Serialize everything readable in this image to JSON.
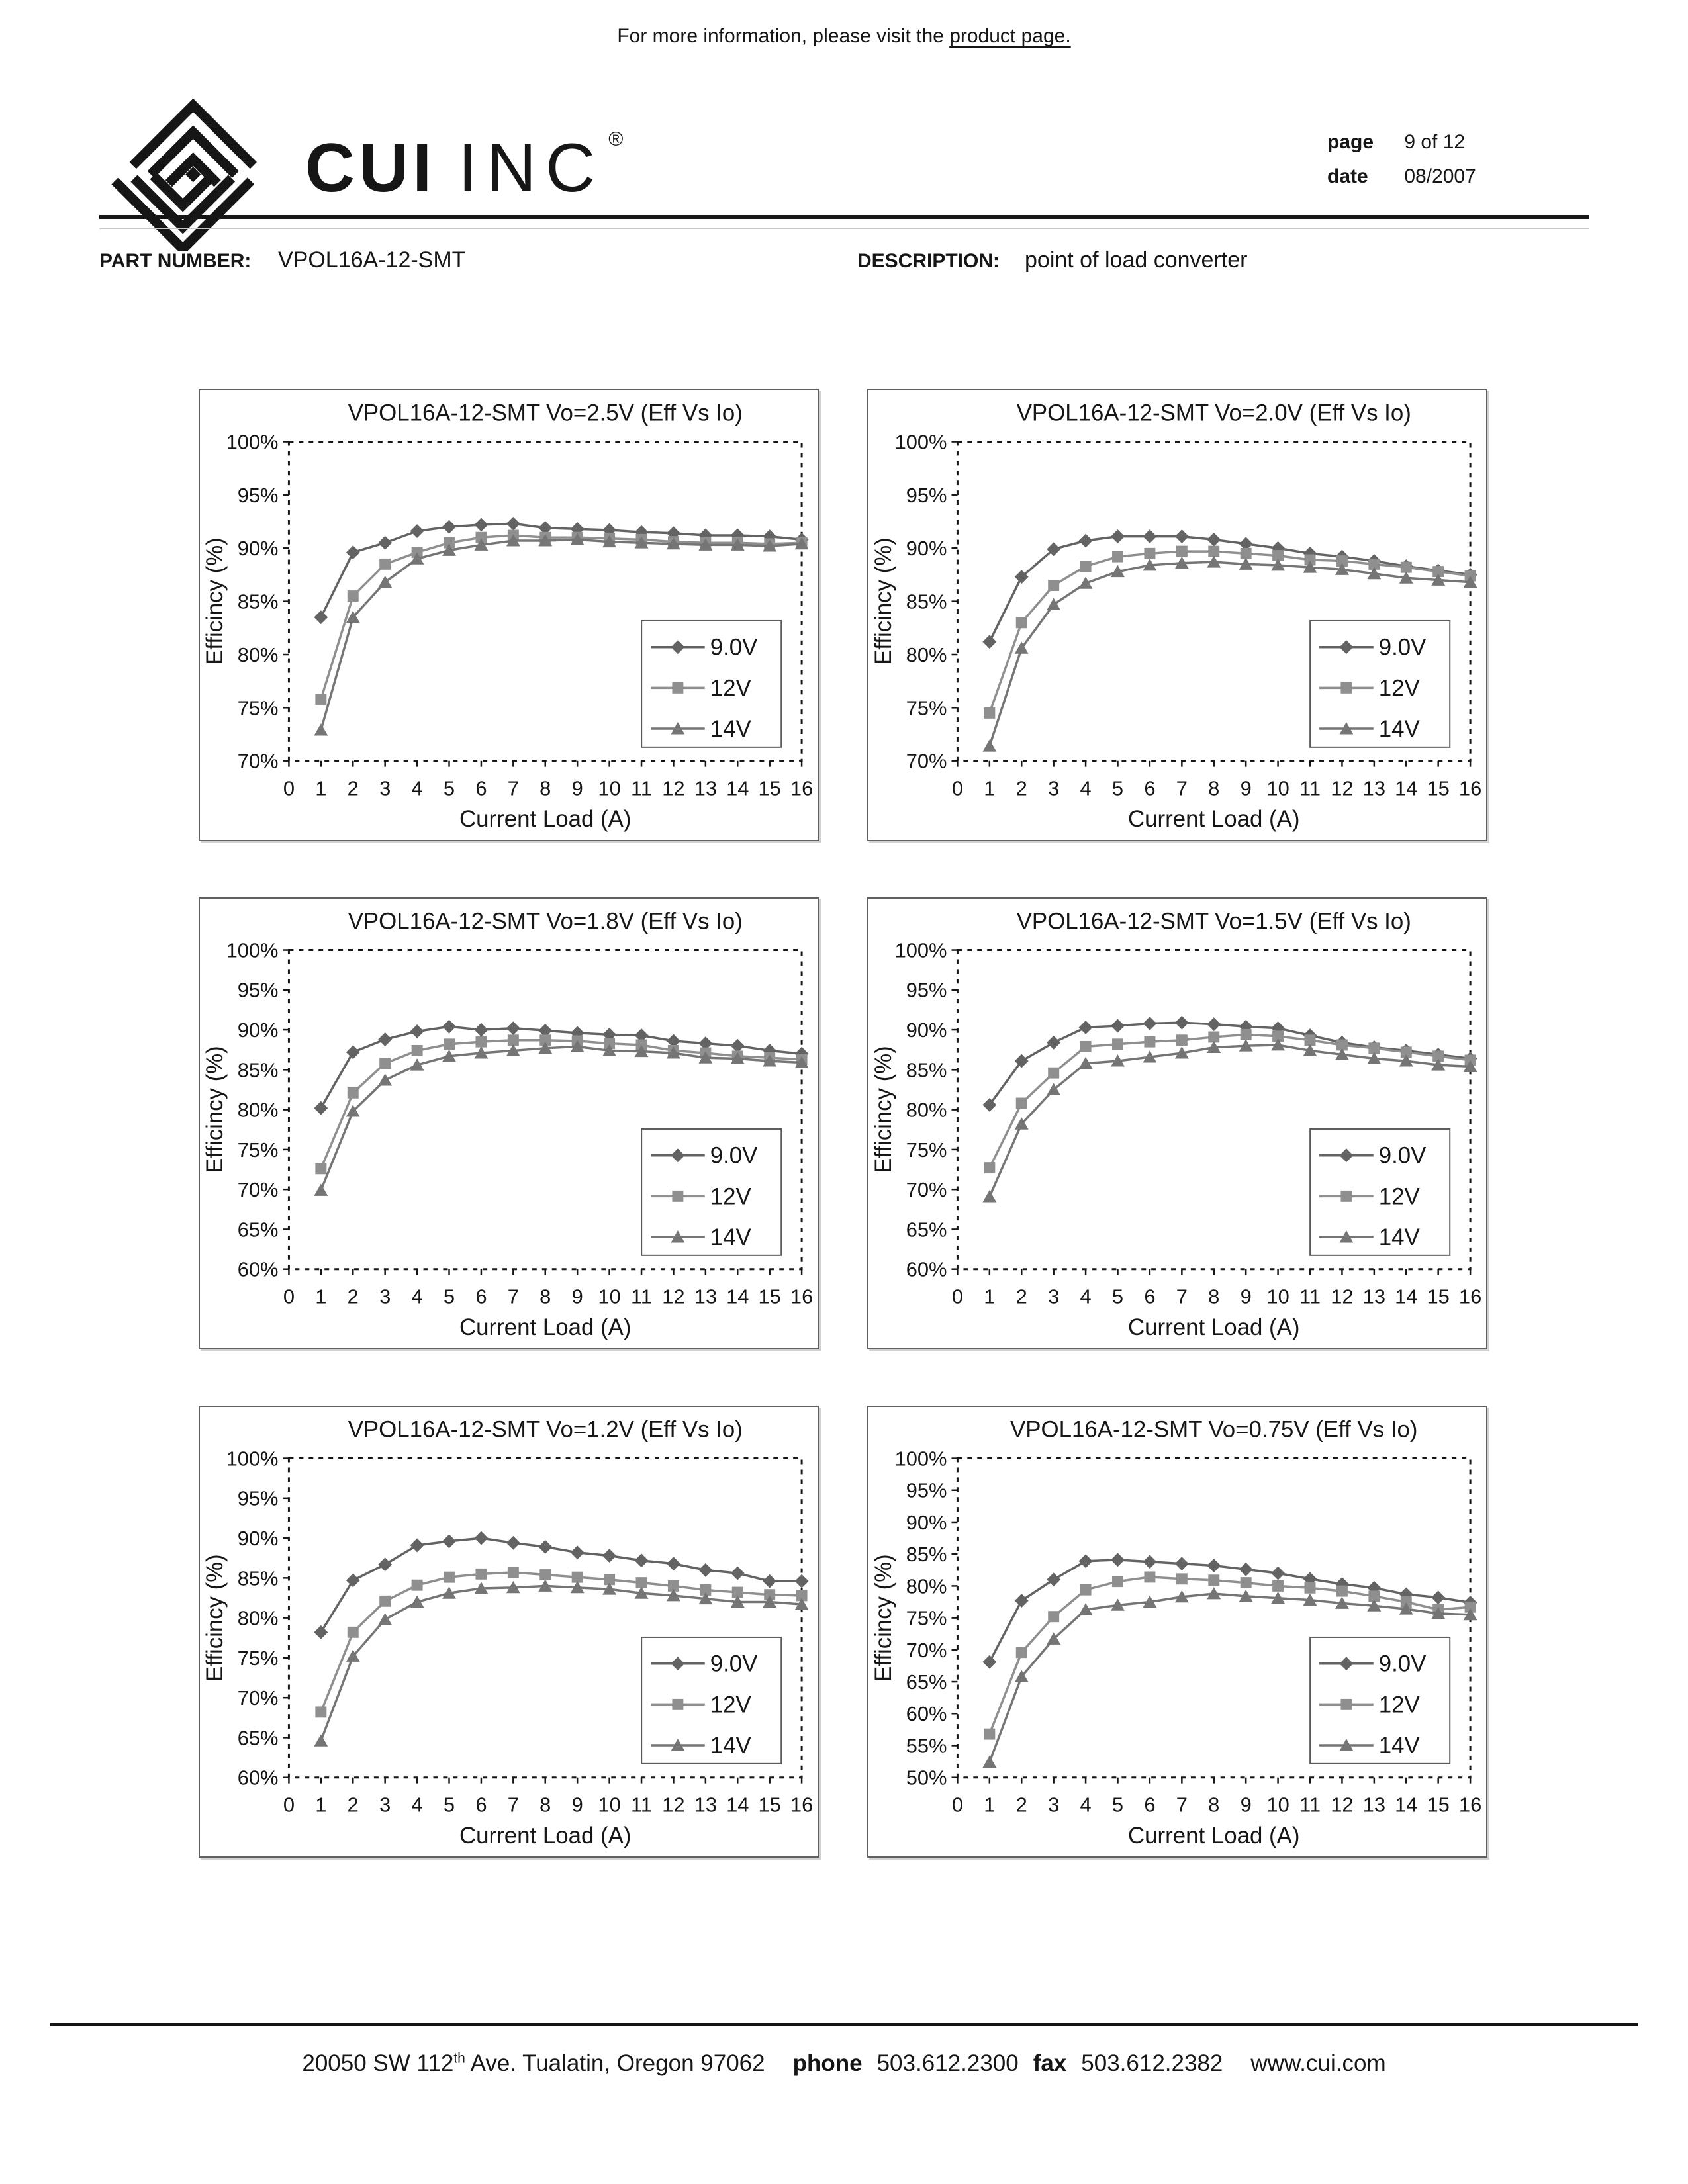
{
  "top_note": {
    "text": "For more information, please visit the ",
    "link": "product page."
  },
  "brand": {
    "cui": "CUI",
    "inc": "INC",
    "reg": "®"
  },
  "meta": {
    "page_label": "page",
    "page_value": "9 of 12",
    "date_label": "date",
    "date_value": "08/2007"
  },
  "part": {
    "label": "PART NUMBER:",
    "value": "VPOL16A-12-SMT"
  },
  "description": {
    "label": "DESCRIPTION:",
    "value": "point of load converter"
  },
  "footer": {
    "address_pre": "20050 SW 112",
    "address_sup": "th",
    "address_post": " Ave. Tualatin, Oregon 97062",
    "phone_label": "phone",
    "phone_value": "503.612.2300",
    "fax_label": "fax",
    "fax_value": "503.612.2382",
    "website": "www.cui.com"
  },
  "chart_style": {
    "series_colors": {
      "9.0V": "#636363",
      "12V": "#8f8f8f",
      "14V": "#757575"
    },
    "border_color": "#161616",
    "legend_border_color": "#5a5a5a"
  },
  "chart_data": [
    {
      "type": "line",
      "title": "VPOL16A-12-SMT Vo=2.5V (Eff Vs Io)",
      "xlabel": "Current Load (A)",
      "ylabel": "Efficincy (%)",
      "xlim": [
        0,
        16
      ],
      "ylim": [
        70,
        100
      ],
      "ytick_step": 5,
      "grid": false,
      "legend_position": "inside-lower-right",
      "x": [
        1,
        2,
        3,
        4,
        5,
        6,
        7,
        8,
        9,
        10,
        11,
        12,
        13,
        14,
        15,
        16
      ],
      "series": [
        {
          "name": "9.0V",
          "marker": "diamond",
          "color": "#636363",
          "values": [
            83.5,
            89.6,
            90.5,
            91.6,
            92.0,
            92.2,
            92.3,
            91.9,
            91.8,
            91.7,
            91.5,
            91.4,
            91.2,
            91.2,
            91.1,
            90.8
          ]
        },
        {
          "name": "12V",
          "marker": "square",
          "color": "#8f8f8f",
          "values": [
            75.8,
            85.5,
            88.5,
            89.6,
            90.5,
            91.0,
            91.2,
            91.0,
            91.0,
            90.9,
            90.8,
            90.6,
            90.5,
            90.5,
            90.4,
            90.5
          ]
        },
        {
          "name": "14V",
          "marker": "triangle",
          "color": "#757575",
          "values": [
            72.9,
            83.5,
            86.8,
            89.0,
            89.8,
            90.3,
            90.7,
            90.7,
            90.8,
            90.6,
            90.5,
            90.4,
            90.3,
            90.3,
            90.2,
            90.4
          ]
        }
      ]
    },
    {
      "type": "line",
      "title": "VPOL16A-12-SMT Vo=2.0V (Eff Vs Io)",
      "xlabel": "Current Load (A)",
      "ylabel": "Efficincy (%)",
      "xlim": [
        0,
        16
      ],
      "ylim": [
        70,
        100
      ],
      "ytick_step": 5,
      "grid": false,
      "legend_position": "inside-lower-right",
      "x": [
        1,
        2,
        3,
        4,
        5,
        6,
        7,
        8,
        9,
        10,
        11,
        12,
        13,
        14,
        15,
        16
      ],
      "series": [
        {
          "name": "9.0V",
          "marker": "diamond",
          "color": "#636363",
          "values": [
            81.2,
            87.3,
            89.9,
            90.7,
            91.1,
            91.1,
            91.1,
            90.8,
            90.4,
            90.0,
            89.5,
            89.2,
            88.8,
            88.3,
            87.9,
            87.5
          ]
        },
        {
          "name": "12V",
          "marker": "square",
          "color": "#8f8f8f",
          "values": [
            74.5,
            83.0,
            86.5,
            88.3,
            89.2,
            89.5,
            89.7,
            89.7,
            89.5,
            89.3,
            88.9,
            88.8,
            88.5,
            88.2,
            87.8,
            87.4
          ]
        },
        {
          "name": "14V",
          "marker": "triangle",
          "color": "#757575",
          "values": [
            71.4,
            80.6,
            84.7,
            86.7,
            87.8,
            88.4,
            88.6,
            88.7,
            88.5,
            88.4,
            88.2,
            88.0,
            87.6,
            87.2,
            87.0,
            86.8
          ]
        }
      ]
    },
    {
      "type": "line",
      "title": "VPOL16A-12-SMT Vo=1.8V (Eff Vs Io)",
      "xlabel": "Current Load (A)",
      "ylabel": "Efficincy (%)",
      "xlim": [
        0,
        16
      ],
      "ylim": [
        60,
        100
      ],
      "ytick_step": 5,
      "grid": false,
      "legend_position": "inside-lower-right",
      "x": [
        1,
        2,
        3,
        4,
        5,
        6,
        7,
        8,
        9,
        10,
        11,
        12,
        13,
        14,
        15,
        16
      ],
      "series": [
        {
          "name": "9.0V",
          "marker": "diamond",
          "color": "#636363",
          "values": [
            80.2,
            87.2,
            88.8,
            89.8,
            90.4,
            90.0,
            90.2,
            89.9,
            89.6,
            89.4,
            89.3,
            88.6,
            88.3,
            88.0,
            87.4,
            87.0
          ]
        },
        {
          "name": "12V",
          "marker": "square",
          "color": "#8f8f8f",
          "values": [
            72.6,
            82.1,
            85.8,
            87.4,
            88.2,
            88.5,
            88.7,
            88.7,
            88.6,
            88.3,
            88.1,
            87.4,
            87.1,
            86.7,
            86.5,
            86.3
          ]
        },
        {
          "name": "14V",
          "marker": "triangle",
          "color": "#757575",
          "values": [
            69.9,
            79.8,
            83.7,
            85.6,
            86.7,
            87.1,
            87.4,
            87.7,
            87.9,
            87.4,
            87.3,
            87.1,
            86.5,
            86.4,
            86.1,
            85.9
          ]
        }
      ]
    },
    {
      "type": "line",
      "title": "VPOL16A-12-SMT Vo=1.5V (Eff Vs Io)",
      "xlabel": "Current Load (A)",
      "ylabel": "Efficincy (%)",
      "xlim": [
        0,
        16
      ],
      "ylim": [
        60,
        100
      ],
      "ytick_step": 5,
      "grid": false,
      "legend_position": "inside-lower-right",
      "x": [
        1,
        2,
        3,
        4,
        5,
        6,
        7,
        8,
        9,
        10,
        11,
        12,
        13,
        14,
        15,
        16
      ],
      "series": [
        {
          "name": "9.0V",
          "marker": "diamond",
          "color": "#636363",
          "values": [
            80.6,
            86.1,
            88.4,
            90.3,
            90.5,
            90.8,
            90.9,
            90.7,
            90.4,
            90.2,
            89.3,
            88.4,
            87.8,
            87.4,
            86.9,
            86.4
          ]
        },
        {
          "name": "12V",
          "marker": "square",
          "color": "#8f8f8f",
          "values": [
            72.7,
            80.8,
            84.6,
            87.9,
            88.2,
            88.5,
            88.7,
            89.1,
            89.4,
            89.2,
            88.7,
            88.1,
            87.7,
            87.2,
            86.7,
            86.2
          ]
        },
        {
          "name": "14V",
          "marker": "triangle",
          "color": "#757575",
          "values": [
            69.1,
            78.2,
            82.5,
            85.8,
            86.1,
            86.6,
            87.1,
            87.8,
            88.0,
            88.1,
            87.4,
            86.9,
            86.4,
            86.1,
            85.6,
            85.4
          ]
        }
      ]
    },
    {
      "type": "line",
      "title": "VPOL16A-12-SMT Vo=1.2V (Eff Vs Io)",
      "xlabel": "Current Load (A)",
      "ylabel": "Efficincy (%)",
      "xlim": [
        0,
        16
      ],
      "ylim": [
        60,
        100
      ],
      "ytick_step": 5,
      "grid": false,
      "legend_position": "inside-lower-right",
      "x": [
        1,
        2,
        3,
        4,
        5,
        6,
        7,
        8,
        9,
        10,
        11,
        12,
        13,
        14,
        15,
        16
      ],
      "series": [
        {
          "name": "9.0V",
          "marker": "diamond",
          "color": "#636363",
          "values": [
            78.2,
            84.7,
            86.7,
            89.1,
            89.6,
            90.0,
            89.4,
            88.9,
            88.2,
            87.8,
            87.2,
            86.8,
            86.0,
            85.6,
            84.6,
            84.6
          ]
        },
        {
          "name": "12V",
          "marker": "square",
          "color": "#8f8f8f",
          "values": [
            68.2,
            78.2,
            82.1,
            84.1,
            85.1,
            85.5,
            85.7,
            85.4,
            85.1,
            84.8,
            84.4,
            84.0,
            83.5,
            83.2,
            82.9,
            82.8
          ]
        },
        {
          "name": "14V",
          "marker": "triangle",
          "color": "#757575",
          "values": [
            64.6,
            75.2,
            79.8,
            82.0,
            83.1,
            83.7,
            83.8,
            84.0,
            83.8,
            83.6,
            83.1,
            82.8,
            82.4,
            82.0,
            82.0,
            81.7
          ]
        }
      ]
    },
    {
      "type": "line",
      "title": "VPOL16A-12-SMT Vo=0.75V (Eff Vs Io)",
      "xlabel": "Current Load (A)",
      "ylabel": "Efficincy (%)",
      "xlim": [
        0,
        16
      ],
      "ylim": [
        50,
        100
      ],
      "ytick_step": 5,
      "grid": false,
      "legend_position": "inside-lower-right",
      "x": [
        1,
        2,
        3,
        4,
        5,
        6,
        7,
        8,
        9,
        10,
        11,
        12,
        13,
        14,
        15,
        16
      ],
      "series": [
        {
          "name": "9.0V",
          "marker": "diamond",
          "color": "#636363",
          "values": [
            68.1,
            77.7,
            81.0,
            83.9,
            84.1,
            83.8,
            83.5,
            83.2,
            82.6,
            82.0,
            81.1,
            80.3,
            79.7,
            78.7,
            78.2,
            77.4
          ]
        },
        {
          "name": "12V",
          "marker": "square",
          "color": "#8f8f8f",
          "values": [
            56.8,
            69.6,
            75.2,
            79.4,
            80.7,
            81.4,
            81.1,
            80.9,
            80.5,
            80.0,
            79.7,
            79.2,
            78.4,
            77.5,
            76.3,
            76.7
          ]
        },
        {
          "name": "14V",
          "marker": "triangle",
          "color": "#757575",
          "values": [
            52.4,
            65.8,
            71.7,
            76.3,
            77.0,
            77.5,
            78.3,
            78.8,
            78.4,
            78.1,
            77.8,
            77.3,
            76.9,
            76.4,
            75.7,
            75.5
          ]
        }
      ]
    }
  ]
}
